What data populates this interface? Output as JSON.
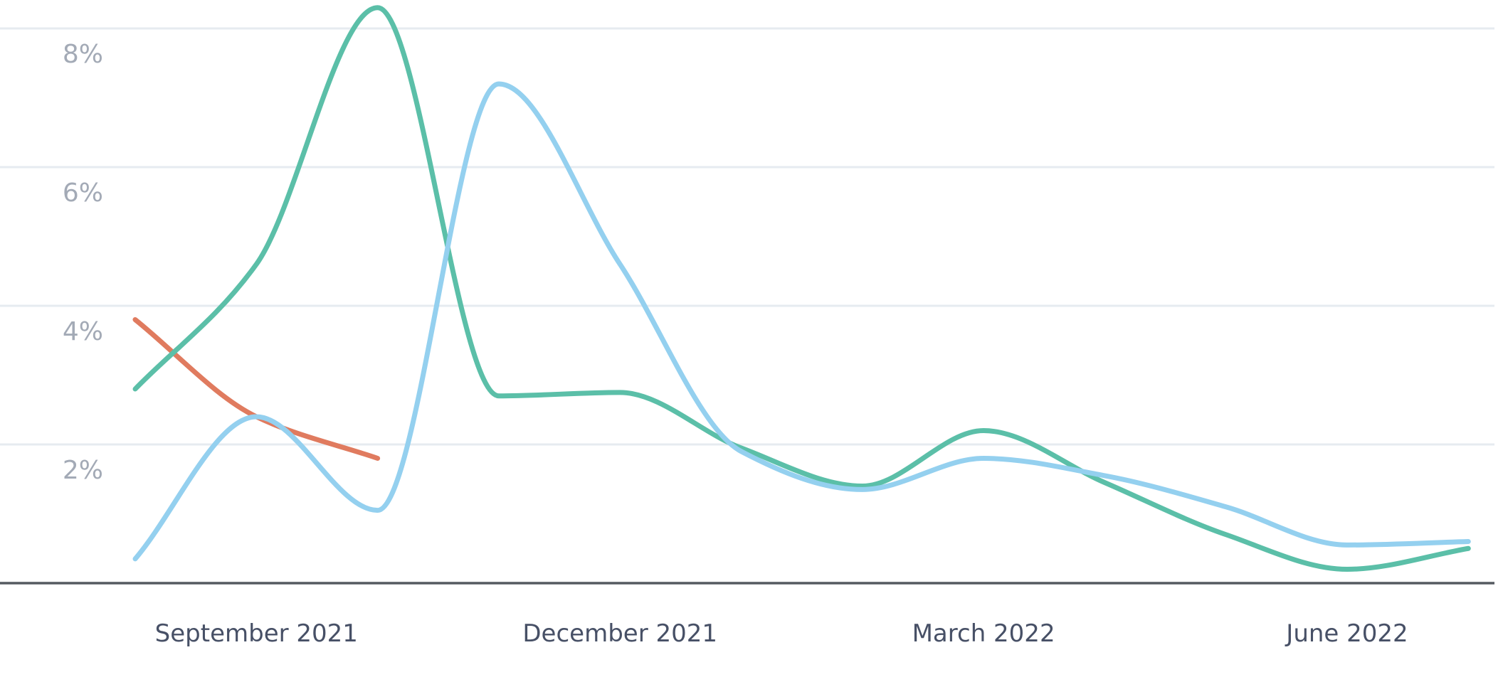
{
  "chart_data": {
    "type": "line",
    "y_unit": "%",
    "ylim": [
      0,
      8.3
    ],
    "y_ticks": [
      {
        "value": 2,
        "label": "2%"
      },
      {
        "value": 4,
        "label": "4%"
      },
      {
        "value": 6,
        "label": "6%"
      },
      {
        "value": 8,
        "label": "8%"
      }
    ],
    "x_ticks": [
      {
        "date": "2021-09",
        "label": "September 2021"
      },
      {
        "date": "2021-12",
        "label": "December 2021"
      },
      {
        "date": "2022-03",
        "label": "March 2022"
      },
      {
        "date": "2022-06",
        "label": "June 2022"
      }
    ],
    "grid": true,
    "legend": "none",
    "series": [
      {
        "color": "#e07b5f",
        "x": [
          "2021-08",
          "2021-09",
          "2021-10"
        ],
        "values": [
          3.8,
          2.4,
          1.8
        ]
      },
      {
        "color": "#5bbfa8",
        "x": [
          "2021-08",
          "2021-09",
          "2021-10",
          "2021-11",
          "2021-12",
          "2022-01",
          "2022-02",
          "2022-03",
          "2022-04",
          "2022-05",
          "2022-06",
          "2022-07"
        ],
        "values": [
          2.8,
          4.6,
          8.3,
          2.7,
          2.75,
          1.95,
          1.4,
          2.2,
          1.45,
          0.7,
          0.2,
          0.5
        ]
      },
      {
        "color": "#94d0ef",
        "x": [
          "2021-08",
          "2021-09",
          "2021-10",
          "2021-11",
          "2021-12",
          "2022-01",
          "2022-02",
          "2022-03",
          "2022-04",
          "2022-05",
          "2022-06",
          "2022-07"
        ],
        "values": [
          0.35,
          2.4,
          1.05,
          7.2,
          4.6,
          1.9,
          1.35,
          1.8,
          1.55,
          1.1,
          0.55,
          0.6
        ]
      }
    ]
  }
}
